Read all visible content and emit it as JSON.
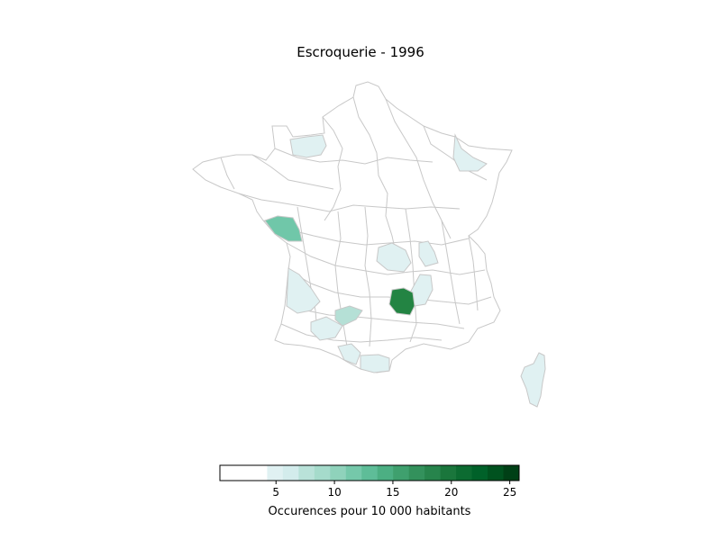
{
  "title": "Escroquerie - 1996",
  "colorbar": {
    "label": "Occurences pour 10 000 habitants",
    "min": 0.2,
    "max": 25.8,
    "ticks": [
      {
        "value": 5,
        "label": "5"
      },
      {
        "value": 10,
        "label": "10"
      },
      {
        "value": 15,
        "label": "15"
      },
      {
        "value": 20,
        "label": "20"
      },
      {
        "value": 25,
        "label": "25"
      }
    ],
    "bins": [
      "#ffffff",
      "#ffffff",
      "#ffffff",
      "#e0f1f2",
      "#d3ecec",
      "#b9e2d9",
      "#a5dbcb",
      "#8fd2bb",
      "#75c8aa",
      "#5ebd98",
      "#4caf83",
      "#3fa06e",
      "#33915c",
      "#27844c",
      "#1a763c",
      "#0c6b31",
      "#006129",
      "#00521f",
      "#004016"
    ]
  },
  "regions": [
    {
      "name": "Vendée",
      "value": 11.5,
      "color": "#70c7a9"
    },
    {
      "name": "Lozère",
      "value": 19.5,
      "color": "#238443"
    },
    {
      "name": "Tarn-et-Garonne",
      "value": 8.0,
      "color": "#b5e0d6"
    },
    {
      "name": "Manche",
      "value": 4.5,
      "color": "#e0f1f2"
    },
    {
      "name": "Moselle",
      "value": 4.5,
      "color": "#e0f1f2"
    },
    {
      "name": "Ain",
      "value": 4.5,
      "color": "#e0f1f2"
    },
    {
      "name": "Puy-de-Dôme",
      "value": 4.5,
      "color": "#e0f1f2"
    },
    {
      "name": "Drôme",
      "value": 4.5,
      "color": "#e0f1f2"
    },
    {
      "name": "Gironde",
      "value": 4.5,
      "color": "#e0f1f2"
    },
    {
      "name": "Gers",
      "value": 4.5,
      "color": "#e0f1f2"
    },
    {
      "name": "Haute-Garonne",
      "value": 4.5,
      "color": "#e0f1f2"
    },
    {
      "name": "Ariège",
      "value": 4.5,
      "color": "#e0f1f2"
    },
    {
      "name": "Corse",
      "value": 4.5,
      "color": "#e0f1f2"
    }
  ]
}
